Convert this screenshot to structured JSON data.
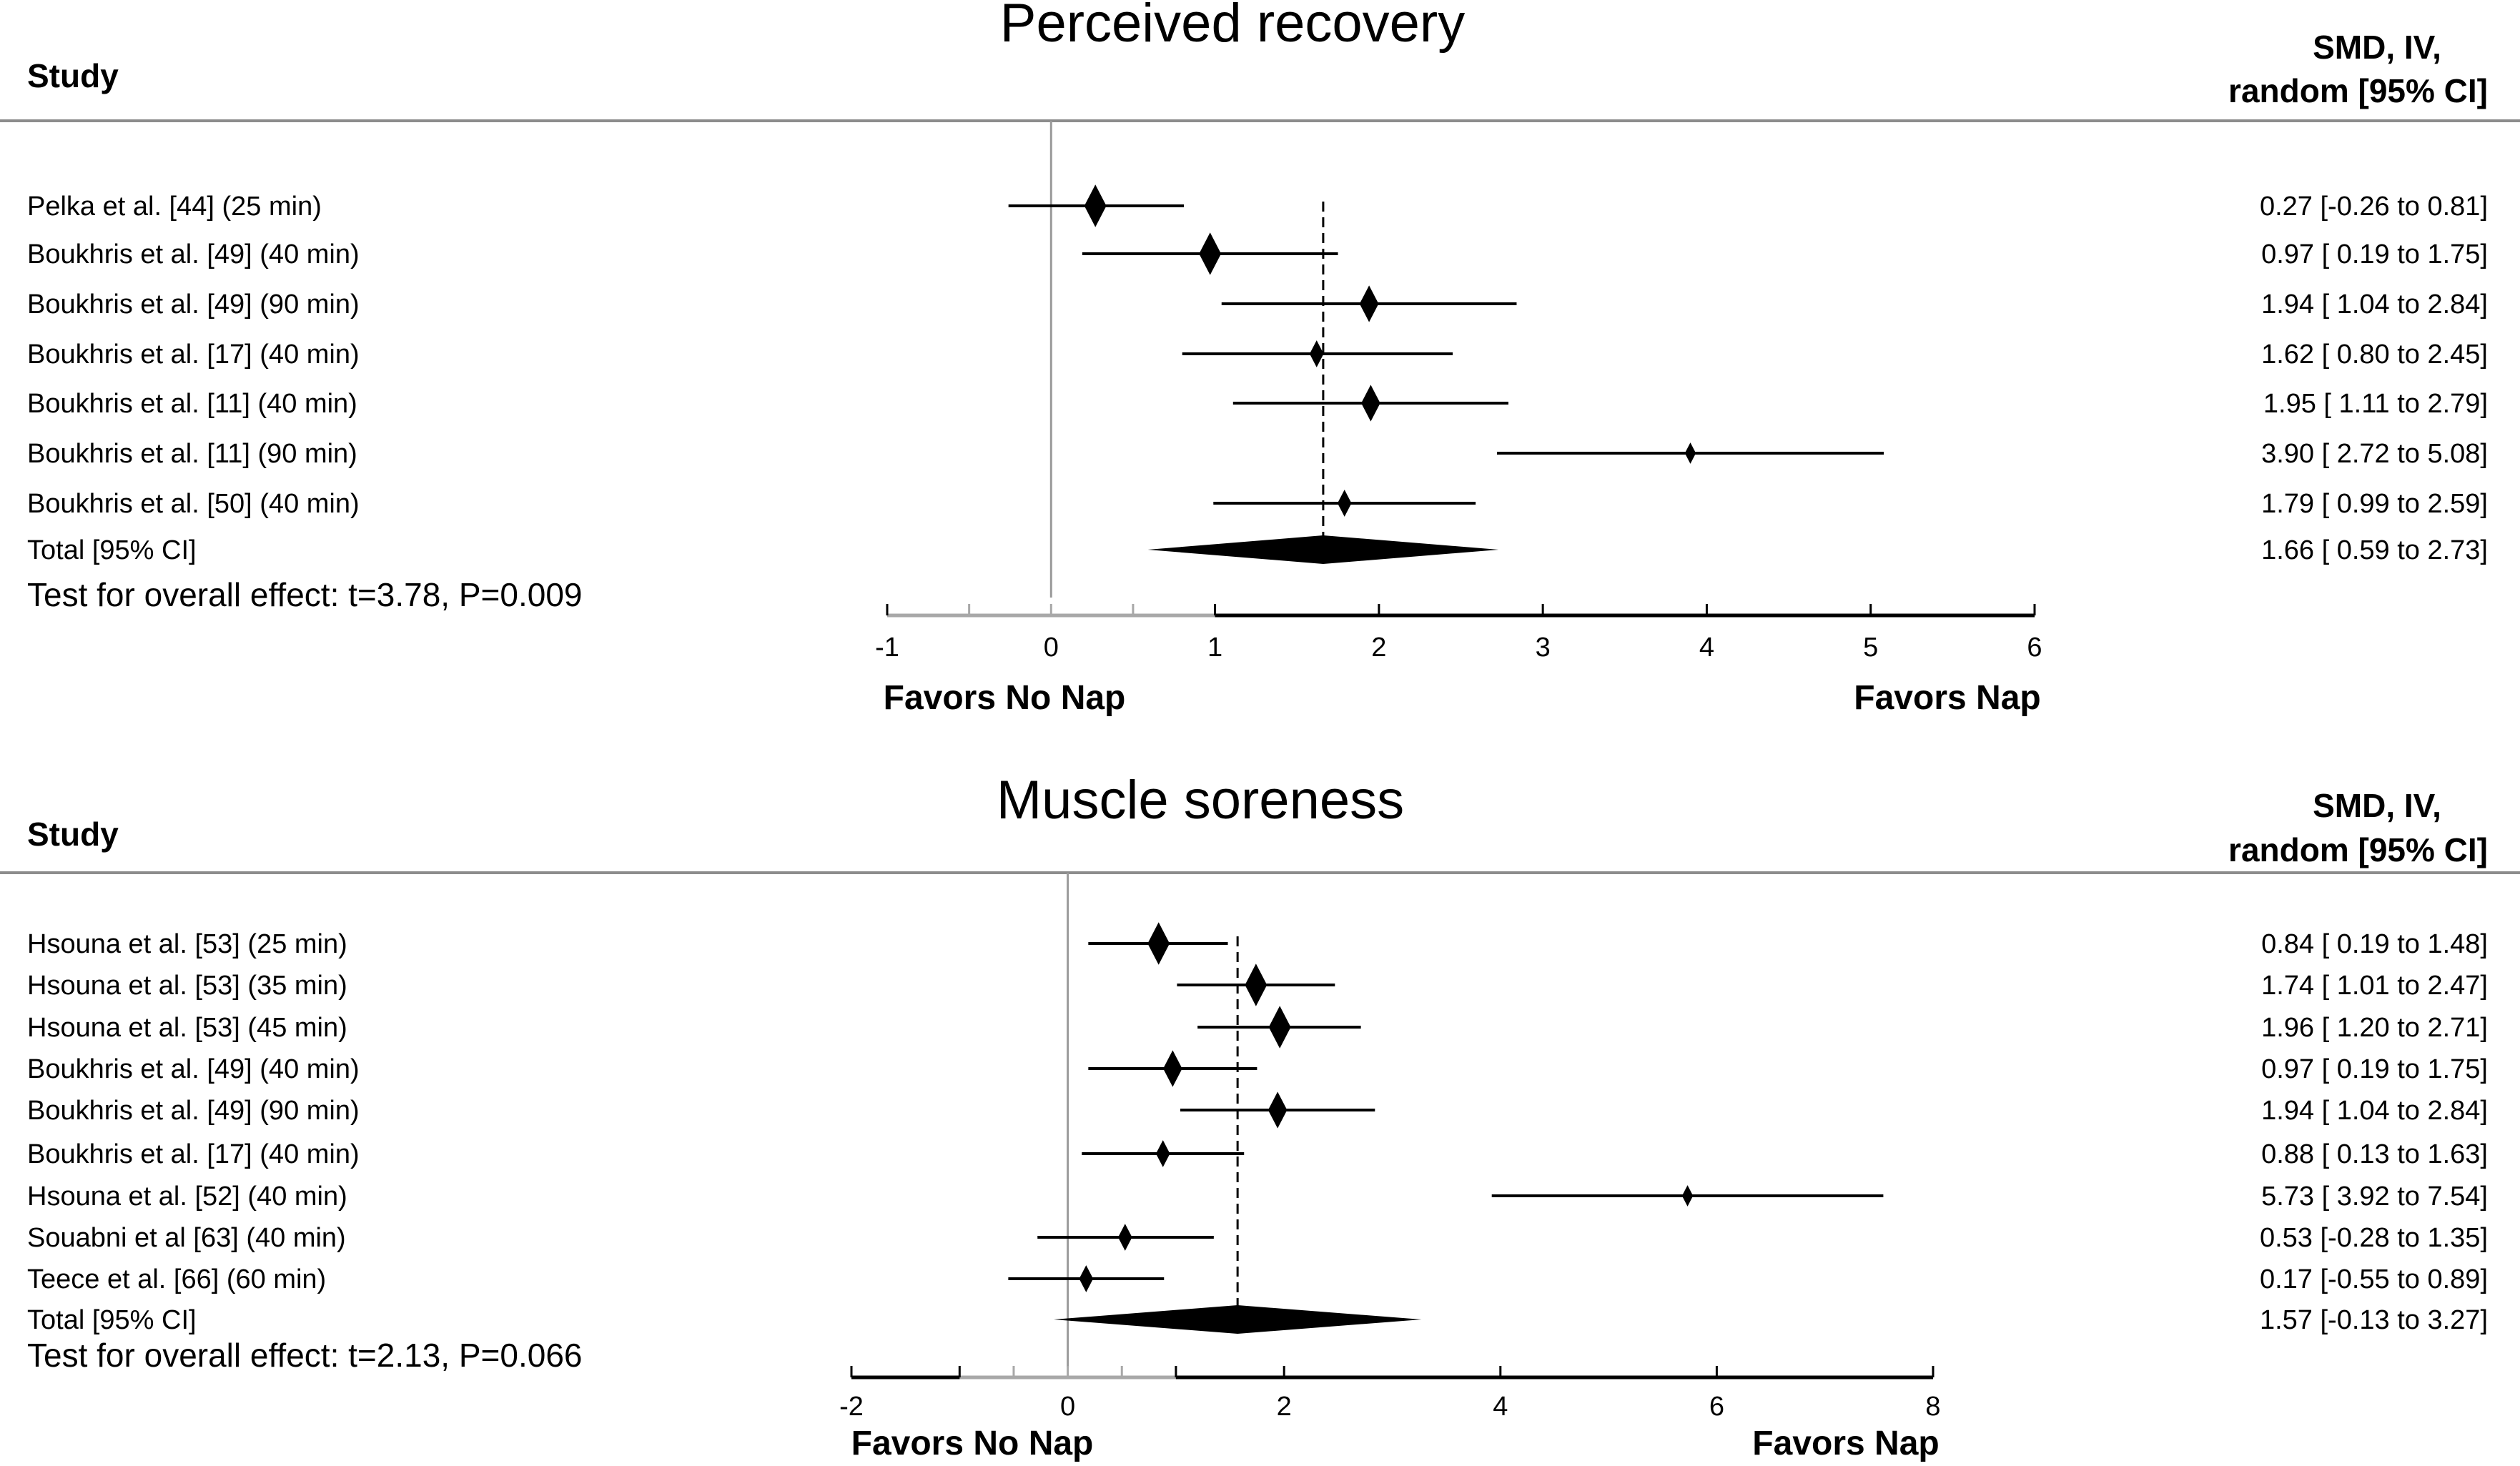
{
  "chart_data": [
    {
      "type": "forest",
      "title": "Perceived recovery",
      "study_header": "Study",
      "effect_header": [
        "SMD, IV,",
        "random [95% CI]"
      ],
      "xlim": [
        -1,
        6
      ],
      "xticks": [
        -1,
        -0.5,
        0,
        0.5,
        1,
        2,
        3,
        4,
        5,
        6
      ],
      "xtick_labels": [
        {
          "value": -1,
          "label": "-1"
        },
        {
          "value": 0,
          "label": "0"
        },
        {
          "value": 1,
          "label": "1"
        },
        {
          "value": 2,
          "label": "2"
        },
        {
          "value": 3,
          "label": "3"
        },
        {
          "value": 4,
          "label": "4"
        },
        {
          "value": 5,
          "label": "5"
        },
        {
          "value": 6,
          "label": "6"
        }
      ],
      "gray_axis_range": [
        -1,
        1
      ],
      "favors_left": "Favors No Nap",
      "favors_right": "Favors Nap",
      "studies": [
        {
          "label": "Pelka et al. [44] (25 min)",
          "smd": 0.27,
          "lo": -0.26,
          "hi": 0.81,
          "ci_text": "0.27 [-0.26 to 0.81]",
          "weight": "large"
        },
        {
          "label": "Boukhris et al. [49] (40 min)",
          "smd": 0.97,
          "lo": 0.19,
          "hi": 1.75,
          "ci_text": "0.97 [ 0.19 to 1.75]",
          "weight": "large"
        },
        {
          "label": "Boukhris et al. [49] (90 min)",
          "smd": 1.94,
          "lo": 1.04,
          "hi": 2.84,
          "ci_text": "1.94 [ 1.04 to 2.84]",
          "weight": "medium"
        },
        {
          "label": "Boukhris et al. [17] (40 min)",
          "smd": 1.62,
          "lo": 0.8,
          "hi": 2.45,
          "ci_text": "1.62 [ 0.80 to 2.45]",
          "weight": "small"
        },
        {
          "label": "Boukhris et al. [11] (40 min)",
          "smd": 1.95,
          "lo": 1.11,
          "hi": 2.79,
          "ci_text": "1.95 [ 1.11 to 2.79]",
          "weight": "medium"
        },
        {
          "label": "Boukhris et al. [11] (90 min)",
          "smd": 3.9,
          "lo": 2.72,
          "hi": 5.08,
          "ci_text": "3.90 [ 2.72 to 5.08]",
          "weight": "tiny"
        },
        {
          "label": "Boukhris et al. [50] (40 min)",
          "smd": 1.79,
          "lo": 0.99,
          "hi": 2.59,
          "ci_text": "1.79 [ 0.99 to 2.59]",
          "weight": "small"
        }
      ],
      "total": {
        "label": "Total [95% CI]",
        "smd": 1.66,
        "lo": 0.59,
        "hi": 2.73,
        "ci_text": "1.66 [ 0.59 to 2.73]"
      },
      "test_text": "Test for overall effect: t=3.78, P=0.009"
    },
    {
      "type": "forest",
      "title": "Muscle soreness",
      "study_header": "Study",
      "effect_header": [
        "SMD, IV,",
        "random [95% CI]"
      ],
      "xlim": [
        -2,
        8
      ],
      "xticks": [
        -2,
        -1,
        -0.5,
        0,
        0.5,
        1,
        2,
        4,
        6,
        8
      ],
      "xtick_labels": [
        {
          "value": -2,
          "label": "-2"
        },
        {
          "value": 0,
          "label": "0"
        },
        {
          "value": 2,
          "label": "2"
        },
        {
          "value": 4,
          "label": "4"
        },
        {
          "value": 6,
          "label": "6"
        },
        {
          "value": 8,
          "label": "8"
        }
      ],
      "gray_axis_range": [
        -1,
        1
      ],
      "favors_left": "Favors No Nap",
      "favors_right": "Favors Nap",
      "studies": [
        {
          "label": "Hsouna et al. [53] (25 min)",
          "smd": 0.84,
          "lo": 0.19,
          "hi": 1.48,
          "ci_text": "0.84 [ 0.19 to 1.48]",
          "weight": "large"
        },
        {
          "label": "Hsouna et al. [53] (35 min)",
          "smd": 1.74,
          "lo": 1.01,
          "hi": 2.47,
          "ci_text": "1.74 [ 1.01 to 2.47]",
          "weight": "large"
        },
        {
          "label": "Hsouna et al. [53] (45 min)",
          "smd": 1.96,
          "lo": 1.2,
          "hi": 2.71,
          "ci_text": "1.96 [ 1.20 to 2.71]",
          "weight": "large"
        },
        {
          "label": "Boukhris et al. [49] (40 min)",
          "smd": 0.97,
          "lo": 0.19,
          "hi": 1.75,
          "ci_text": "0.97 [ 0.19 to 1.75]",
          "weight": "medium"
        },
        {
          "label": "Boukhris et al. [49] (90 min)",
          "smd": 1.94,
          "lo": 1.04,
          "hi": 2.84,
          "ci_text": "1.94 [ 1.04 to 2.84]",
          "weight": "medium"
        },
        {
          "label": "Boukhris et al. [17] (40 min)",
          "smd": 0.88,
          "lo": 0.13,
          "hi": 1.63,
          "ci_text": "0.88 [ 0.13 to 1.63]",
          "weight": "small"
        },
        {
          "label": "Hsouna et al. [52] (40 min)",
          "smd": 5.73,
          "lo": 3.92,
          "hi": 7.54,
          "ci_text": "5.73 [ 3.92 to 7.54]",
          "weight": "tiny"
        },
        {
          "label": "Souabni et al [63] (40 min)",
          "smd": 0.53,
          "lo": -0.28,
          "hi": 1.35,
          "ci_text": "0.53 [-0.28 to 1.35]",
          "weight": "small"
        },
        {
          "label": "Teece et al. [66] (60 min)",
          "smd": 0.17,
          "lo": -0.55,
          "hi": 0.89,
          "ci_text": "0.17 [-0.55 to 0.89]",
          "weight": "small"
        }
      ],
      "total": {
        "label": "Total [95% CI]",
        "smd": 1.57,
        "lo": -0.13,
        "hi": 3.27,
        "ci_text": "1.57 [-0.13 to 3.27]"
      },
      "test_text": "Test for overall effect: t=2.13, P=0.066"
    }
  ],
  "colors": {
    "ink": "#000000",
    "rule": "#8c8c8c",
    "zero_line": "#9a9a9a",
    "gray_axis": "#a8a8a8"
  }
}
